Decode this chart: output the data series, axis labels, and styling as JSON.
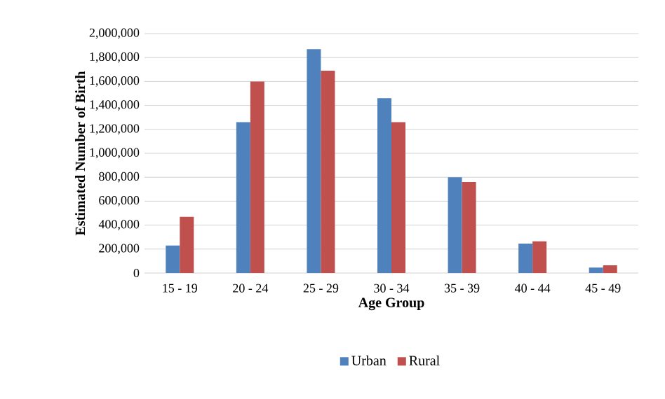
{
  "chart_data": {
    "type": "bar",
    "xlabel": "Age Group",
    "ylabel": "Estimated Number of Birth",
    "categories": [
      "15 - 19",
      "20 - 24",
      "25 - 29",
      "30 - 34",
      "35 - 39",
      "40 - 44",
      "45 - 49"
    ],
    "series": [
      {
        "name": "Urban",
        "color": "#4f81bd",
        "values": [
          230000,
          1260000,
          1870000,
          1460000,
          800000,
          245000,
          45000
        ]
      },
      {
        "name": "Rural",
        "color": "#c0504d",
        "values": [
          470000,
          1600000,
          1690000,
          1260000,
          760000,
          265000,
          65000
        ]
      }
    ],
    "ylim": [
      0,
      2000000
    ],
    "yticks": [
      {
        "value": 0,
        "label": "0"
      },
      {
        "value": 200000,
        "label": "200,000"
      },
      {
        "value": 400000,
        "label": "400,000"
      },
      {
        "value": 600000,
        "label": "600,000"
      },
      {
        "value": 800000,
        "label": "800,000"
      },
      {
        "value": 1000000,
        "label": "1,000,000"
      },
      {
        "value": 1200000,
        "label": "1,200,000"
      },
      {
        "value": 1400000,
        "label": "1,400,000"
      },
      {
        "value": 1600000,
        "label": "1,600,000"
      },
      {
        "value": 1800000,
        "label": "1,800,000"
      },
      {
        "value": 2000000,
        "label": "2,000,000"
      }
    ],
    "grid": "y",
    "legend": "bottom"
  }
}
